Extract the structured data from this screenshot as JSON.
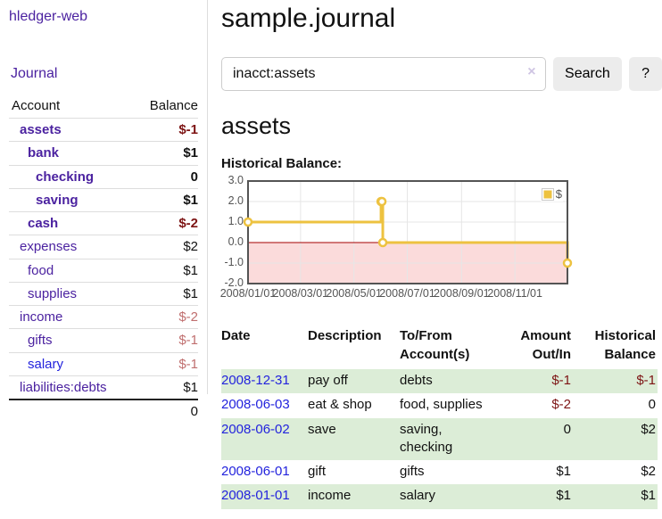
{
  "sidebar": {
    "app_title": "hledger-web",
    "nav": {
      "journal_label": "Journal"
    },
    "accounts_table": {
      "headers": {
        "account": "Account",
        "balance": "Balance"
      },
      "rows": [
        {
          "name": "assets",
          "balance": "$-1",
          "level": 1,
          "bold": true,
          "balance_style": "negative"
        },
        {
          "name": "bank",
          "balance": "$1",
          "level": 2,
          "bold": true,
          "balance_style": "normal"
        },
        {
          "name": "checking",
          "balance": "0",
          "level": 3,
          "bold": true,
          "balance_style": "normal"
        },
        {
          "name": "saving",
          "balance": "$1",
          "level": 3,
          "bold": true,
          "balance_style": "normal"
        },
        {
          "name": "cash",
          "balance": "$-2",
          "level": 2,
          "bold": true,
          "balance_style": "negative"
        },
        {
          "name": "expenses",
          "balance": "$2",
          "level": 1,
          "bold": false,
          "balance_style": "normal"
        },
        {
          "name": "food",
          "balance": "$1",
          "level": 2,
          "bold": false,
          "balance_style": "normal"
        },
        {
          "name": "supplies",
          "balance": "$1",
          "level": 2,
          "bold": false,
          "balance_style": "normal"
        },
        {
          "name": "income",
          "balance": "$-2",
          "level": 1,
          "bold": false,
          "balance_style": "negative-muted"
        },
        {
          "name": "gifts",
          "balance": "$-1",
          "level": 2,
          "bold": false,
          "balance_style": "negative-muted"
        },
        {
          "name": "salary",
          "balance": "$-1",
          "level": 2,
          "bold": false,
          "balance_style": "negative-muted",
          "link_style": "blue"
        },
        {
          "name": "liabilities:debts",
          "balance": "$1",
          "level": 1,
          "bold": false,
          "balance_style": "normal"
        }
      ],
      "total": "0"
    }
  },
  "header": {
    "title": "sample.journal"
  },
  "search": {
    "query": "inacct:assets",
    "clear_icon": "×",
    "search_label": "Search",
    "help_label": "?"
  },
  "register": {
    "account_heading": "assets",
    "chart_label": "Historical Balance:",
    "table": {
      "headers": {
        "date": "Date",
        "sort_indicator": "∧",
        "description": "Description",
        "accounts": "To/From Account(s)",
        "amount": "Amount Out/In",
        "balance": "Historical Balance"
      },
      "rows": [
        {
          "date": "2008-12-31",
          "description": "pay off",
          "accounts": "debts",
          "amount": "$-1",
          "amount_negative": true,
          "balance": "$-1",
          "balance_negative": true
        },
        {
          "date": "2008-06-03",
          "description": "eat & shop",
          "accounts": "food, supplies",
          "amount": "$-2",
          "amount_negative": true,
          "balance": "0",
          "balance_negative": false
        },
        {
          "date": "2008-06-02",
          "description": "save",
          "accounts": "saving, checking",
          "amount": "0",
          "amount_negative": false,
          "balance": "$2",
          "balance_negative": false
        },
        {
          "date": "2008-06-01",
          "description": "gift",
          "accounts": "gifts",
          "amount": "$1",
          "amount_negative": false,
          "balance": "$2",
          "balance_negative": false
        },
        {
          "date": "2008-01-01",
          "description": "income",
          "accounts": "salary",
          "amount": "$1",
          "amount_negative": false,
          "balance": "$1",
          "balance_negative": false
        }
      ]
    }
  },
  "chart_data": {
    "type": "line",
    "title": "Historical Balance:",
    "series": [
      {
        "name": "$",
        "color": "#edc240",
        "step": true,
        "points": [
          [
            "2008-01-01",
            1.0
          ],
          [
            "2008-06-01",
            2.0
          ],
          [
            "2008-06-02",
            2.0
          ],
          [
            "2008-06-03",
            0.0
          ],
          [
            "2008-12-31",
            -1.0
          ]
        ]
      }
    ],
    "x_domain": [
      "2008-01-01",
      "2008-12-31"
    ],
    "x_ticks": [
      "2008/01/01",
      "2008/03/01",
      "2008/05/01",
      "2008/07/01",
      "2008/09/01",
      "2008/11/01"
    ],
    "y_ticks": [
      3.0,
      2.0,
      1.0,
      0.0,
      -1.0,
      -2.0
    ],
    "ylim": [
      -2.0,
      3.0
    ],
    "grid": true,
    "legend": {
      "label": "$",
      "position": "top-right"
    },
    "negative_region_fill": "#fbdbdb",
    "zero_line_color": "#a40000",
    "frame_color": "#545454"
  },
  "colors": {
    "link_purple": "#4b22a0",
    "link_blue": "#2323dd",
    "negative_red": "#7d1414",
    "negative_muted_red": "#c06f6f",
    "row_stripe_green": "#dcedd7",
    "chart_line_gold": "#edc240"
  }
}
